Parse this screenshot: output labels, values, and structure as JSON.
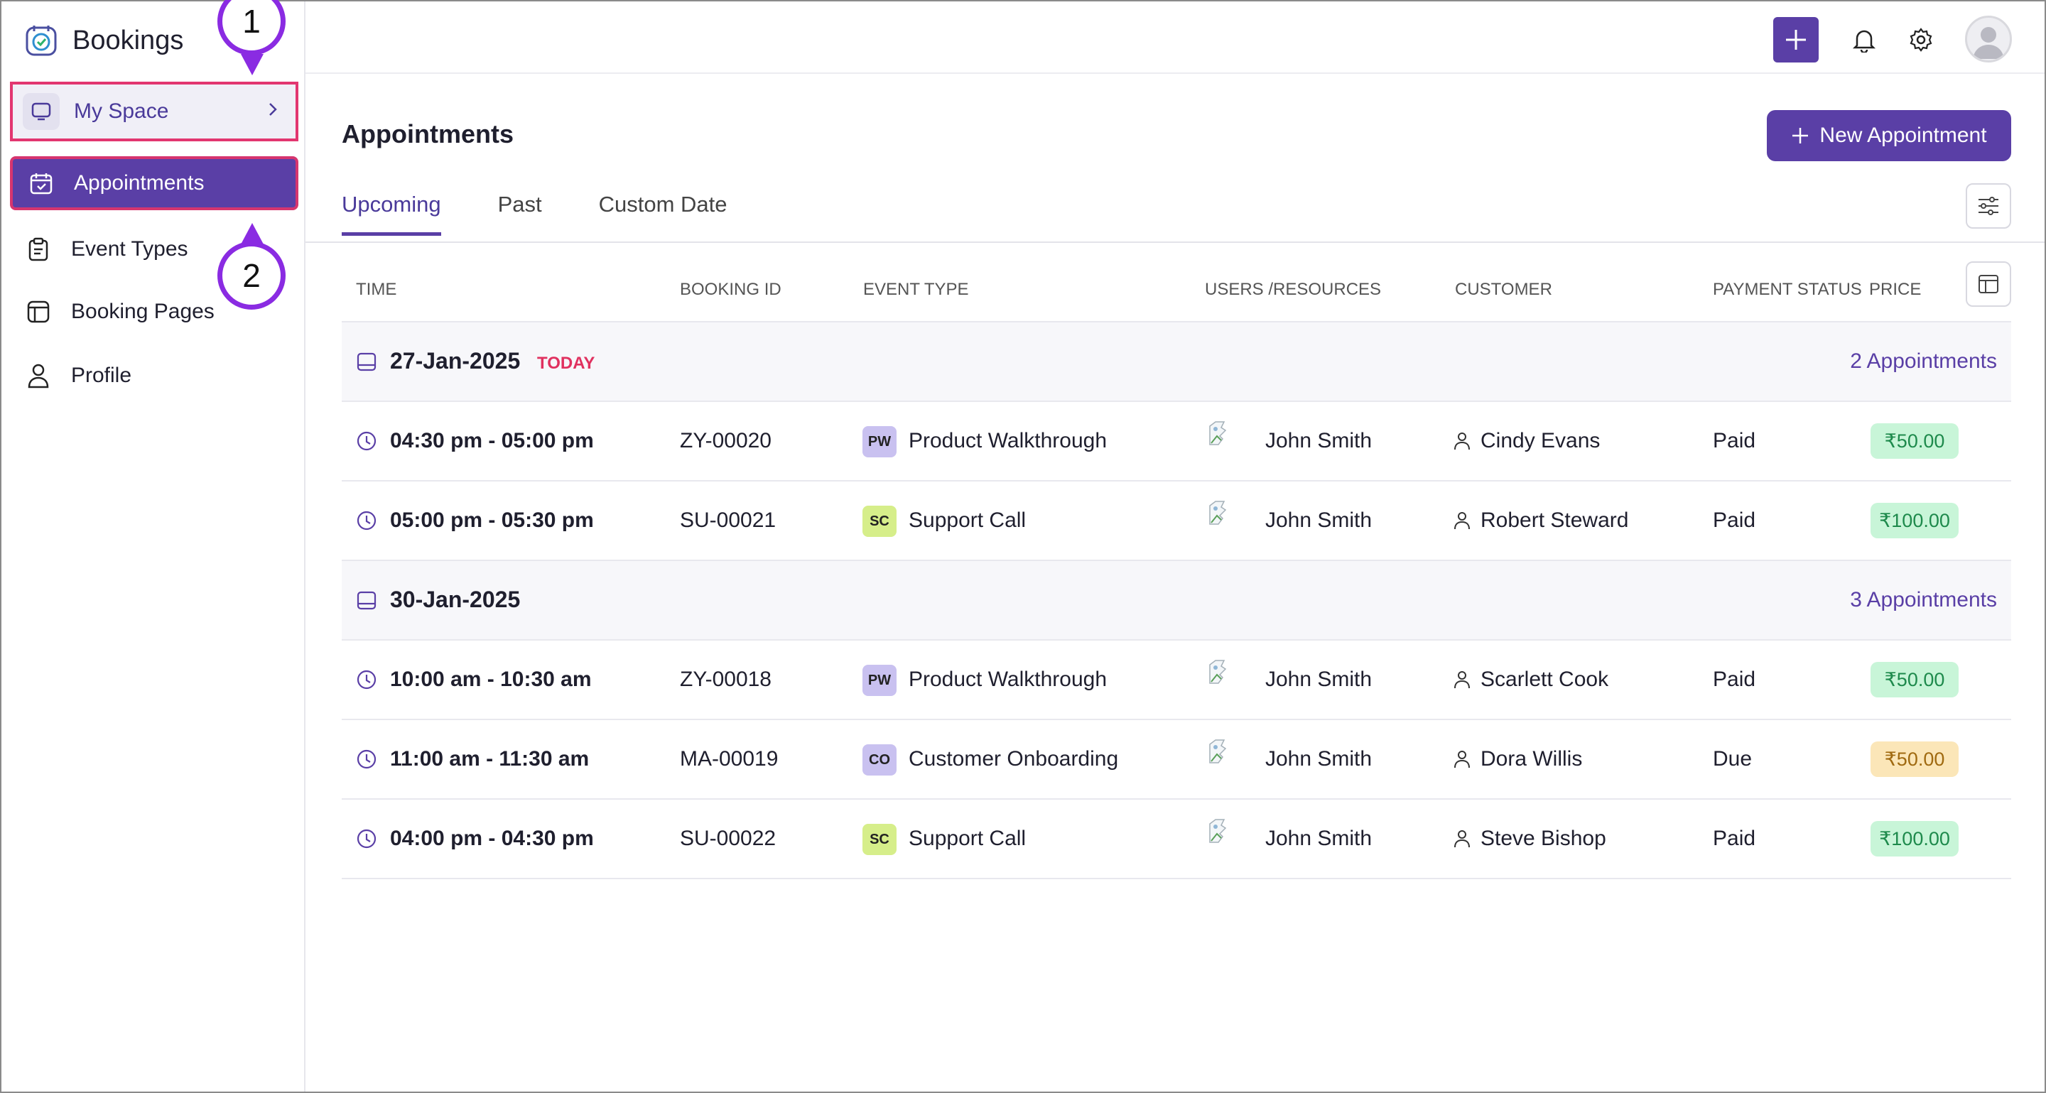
{
  "app": {
    "title": "Bookings"
  },
  "sidebar": {
    "items": [
      {
        "label": "My Space",
        "icon": "monitor-icon"
      },
      {
        "label": "Appointments",
        "icon": "calendar-check-icon"
      },
      {
        "label": "Event Types",
        "icon": "clipboard-icon"
      },
      {
        "label": "Booking Pages",
        "icon": "layout-icon"
      },
      {
        "label": "Profile",
        "icon": "user-icon"
      }
    ]
  },
  "callouts": {
    "one": "1",
    "two": "2"
  },
  "main": {
    "title": "Appointments",
    "new_button": "New Appointment",
    "tabs": [
      {
        "label": "Upcoming"
      },
      {
        "label": "Past"
      },
      {
        "label": "Custom Date"
      }
    ],
    "columns": {
      "time": "TIME",
      "booking_id": "BOOKING ID",
      "event_type": "EVENT TYPE",
      "users": "USERS /RESOURCES",
      "customer": "CUSTOMER",
      "payment_status": "PAYMENT STATUS",
      "price": "PRICE"
    },
    "groups": [
      {
        "date": "27-Jan-2025",
        "tag": "TODAY",
        "count": "2 Appointments",
        "rows": [
          {
            "time": "04:30 pm - 05:00 pm",
            "booking_id": "ZY-00020",
            "badge": "PW",
            "event_type": "Product Walkthrough",
            "user": "John Smith",
            "customer": "Cindy Evans",
            "payment": "Paid",
            "price": "₹50.00"
          },
          {
            "time": "05:00 pm - 05:30 pm",
            "booking_id": "SU-00021",
            "badge": "SC",
            "event_type": "Support Call",
            "user": "John Smith",
            "customer": "Robert Steward",
            "payment": "Paid",
            "price": "₹100.00"
          }
        ]
      },
      {
        "date": "30-Jan-2025",
        "tag": "",
        "count": "3 Appointments",
        "rows": [
          {
            "time": "10:00 am - 10:30 am",
            "booking_id": "ZY-00018",
            "badge": "PW",
            "event_type": "Product Walkthrough",
            "user": "John Smith",
            "customer": "Scarlett Cook",
            "payment": "Paid",
            "price": "₹50.00"
          },
          {
            "time": "11:00 am - 11:30 am",
            "booking_id": "MA-00019",
            "badge": "CO",
            "event_type": "Customer Onboarding",
            "user": "John Smith",
            "customer": "Dora Willis",
            "payment": "Due",
            "price": "₹50.00"
          },
          {
            "time": "04:00 pm - 04:30 pm",
            "booking_id": "SU-00022",
            "badge": "SC",
            "event_type": "Support Call",
            "user": "John Smith",
            "customer": "Steve Bishop",
            "payment": "Paid",
            "price": "₹100.00"
          }
        ]
      }
    ]
  },
  "colors": {
    "accent": "#5a3fa6",
    "highlight_border": "#e23670",
    "callout": "#8a2be2",
    "badge_pw": "#c9c1f0",
    "badge_sc": "#d6ee8a",
    "badge_co": "#c9c1f0",
    "paid_bg": "#c8f5d8",
    "due_bg": "#fbe6b8"
  }
}
